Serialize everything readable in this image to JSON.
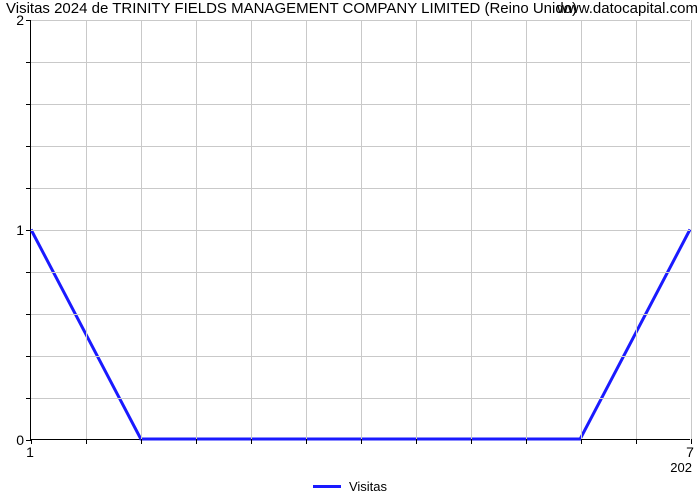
{
  "title": "Visitas 2024 de TRINITY FIELDS MANAGEMENT COMPANY LIMITED (Reino Unido)",
  "watermark": "www.datocapital.com",
  "chart": {
    "type": "line",
    "series_name": "Visitas",
    "line_color": "#1a1aff",
    "line_width": 3,
    "background_color": "#ffffff",
    "grid_color": "#c9c9c9",
    "axis_color": "#000000",
    "font_family": "Arial",
    "title_fontsize": 15,
    "tick_fontsize": 14,
    "legend_fontsize": 13,
    "x": {
      "min": 1,
      "max": 7,
      "ticks": [
        1,
        1.5,
        2,
        2.5,
        3,
        3.5,
        4,
        4.5,
        5,
        5.5,
        6,
        6.5,
        7
      ],
      "tick_labels_visible": {
        "1": "1",
        "7": "7"
      },
      "sublabel": "202"
    },
    "y": {
      "min": 0,
      "max": 2,
      "ticks": [
        0,
        1,
        2
      ],
      "minor_ticks": [
        0.2,
        0.4,
        0.6,
        0.8,
        1.2,
        1.4,
        1.6,
        1.8
      ]
    },
    "data": {
      "x": [
        1,
        2,
        3,
        4,
        5,
        6,
        7
      ],
      "y": [
        1,
        0,
        0,
        0,
        0,
        0,
        1
      ]
    }
  }
}
